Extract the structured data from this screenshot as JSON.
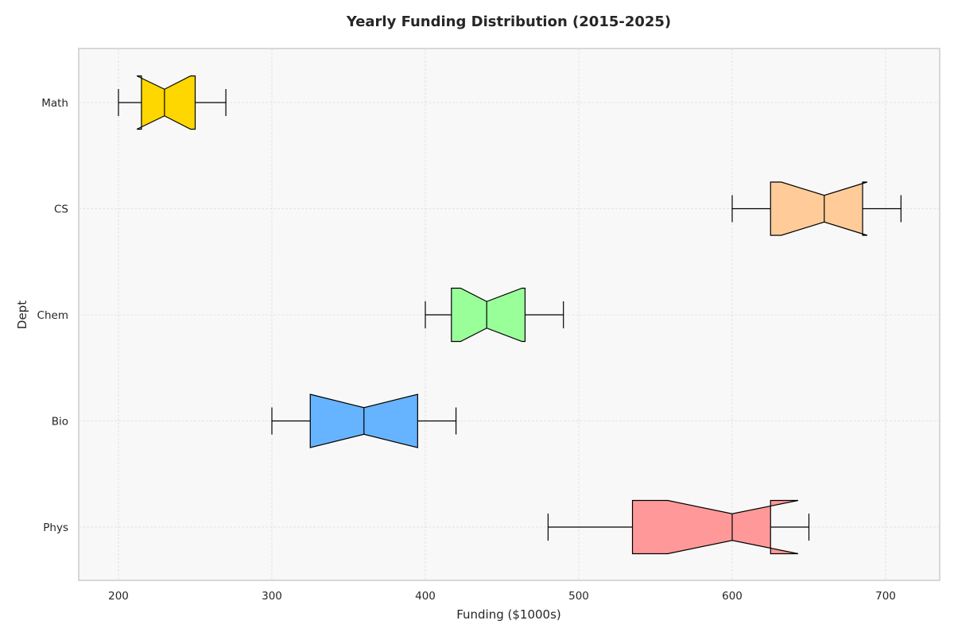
{
  "chart_data": {
    "type": "boxplot",
    "orientation": "horizontal",
    "notched": true,
    "title": "Yearly Funding Distribution (2015-2025)",
    "xlabel": "Funding ($1000s)",
    "ylabel": "Dept",
    "xlim": [
      174,
      1735
    ],
    "xticks": [
      200,
      300,
      400,
      500,
      600,
      700
    ],
    "grid": true,
    "series": [
      {
        "name": "Phys",
        "whisker_low": 480,
        "q1": 535,
        "median": 600,
        "q3": 625,
        "whisker_high": 650,
        "notch_low": 558,
        "notch_high": 643,
        "color": "#ff9999"
      },
      {
        "name": "Bio",
        "whisker_low": 300,
        "q1": 325,
        "median": 360,
        "q3": 395,
        "whisker_high": 420,
        "notch_low": 325,
        "notch_high": 395,
        "color": "#66b3ff"
      },
      {
        "name": "Chem",
        "whisker_low": 400,
        "q1": 417,
        "median": 440,
        "q3": 465,
        "whisker_high": 490,
        "notch_low": 423,
        "notch_high": 463,
        "color": "#99ff99"
      },
      {
        "name": "CS",
        "whisker_low": 600,
        "q1": 625,
        "median": 660,
        "q3": 685,
        "whisker_high": 710,
        "notch_low": 632,
        "notch_high": 688,
        "color": "#ffcc99"
      },
      {
        "name": "Math",
        "whisker_low": 200,
        "q1": 215,
        "median": 230,
        "q3": 250,
        "whisker_high": 270,
        "notch_low": 212,
        "notch_high": 247,
        "color": "#ffd700"
      }
    ]
  }
}
